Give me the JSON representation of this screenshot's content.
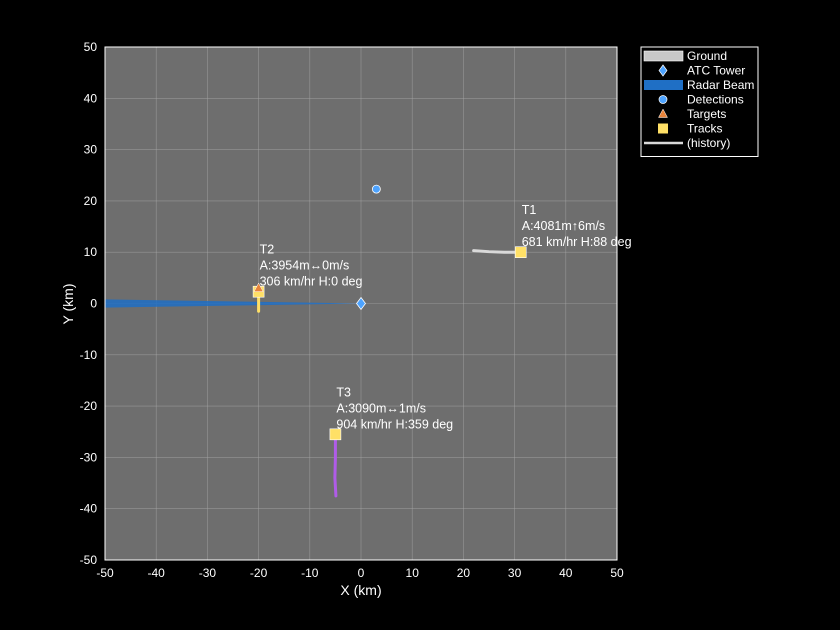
{
  "chart_data": {
    "type": "scatter",
    "xlabel": "X (km)",
    "ylabel": "Y (km)",
    "xlim": [
      -50,
      50
    ],
    "ylim": [
      -50,
      50
    ],
    "xticks": [
      -50,
      -40,
      -30,
      -20,
      -10,
      0,
      10,
      20,
      30,
      40,
      50
    ],
    "yticks": [
      -50,
      -40,
      -30,
      -20,
      -10,
      0,
      10,
      20,
      30,
      40,
      50
    ],
    "grid": true,
    "legend_position": "outside-top-right",
    "colors": {
      "background": "#000000",
      "axes_face": "#6e6e6e",
      "grid": "#a8a8a8",
      "ground": "#c8c8c8",
      "tower": "#4da3ff",
      "beam": "#1f6fc5",
      "detection": "#4da3ff",
      "target": "#e8833a",
      "track": "#ffe066",
      "history": "#d9d9d9"
    },
    "atc_tower": {
      "x": 0,
      "y": 0
    },
    "radar_beam": {
      "from": [
        0,
        0
      ],
      "to": [
        -50,
        0
      ],
      "half_width_at_end": 0.8
    },
    "detections": [
      {
        "x": 3,
        "y": 22.3
      }
    ],
    "targets": [
      {
        "x": -20,
        "y": 3
      }
    ],
    "tracks": [
      {
        "id": "T1",
        "x": 31.2,
        "y": 10,
        "label_lines": [
          "T1",
          "A:4081m↑6m/s",
          "681 km/hr  H:88 deg"
        ],
        "history_color": "#d9d9d9",
        "history": [
          [
            22,
            10.3
          ],
          [
            25,
            10.1
          ],
          [
            28,
            10.0
          ],
          [
            31.2,
            10.0
          ]
        ]
      },
      {
        "id": "T2",
        "x": -20,
        "y": 2.3,
        "label_lines": [
          "T2",
          "A:3954m↔0m/s",
          "306 km/hr  H:0 deg"
        ],
        "history_color": "#ffe066",
        "history": [
          [
            -20,
            -1.5
          ],
          [
            -20,
            0.5
          ],
          [
            -20,
            2.3
          ]
        ]
      },
      {
        "id": "T3",
        "x": -5,
        "y": -25.5,
        "label_lines": [
          "T3",
          "A:3090m↔1m/s",
          "904 km/hr  H:359 deg"
        ],
        "history_color": "#b05ce8",
        "history": [
          [
            -4.9,
            -37.5
          ],
          [
            -5.1,
            -34
          ],
          [
            -5.0,
            -30
          ],
          [
            -5.0,
            -25.5
          ]
        ]
      }
    ]
  },
  "legend": {
    "items": [
      {
        "label": "Ground",
        "symbol": "ground"
      },
      {
        "label": "ATC Tower",
        "symbol": "tower"
      },
      {
        "label": "Radar Beam",
        "symbol": "beam"
      },
      {
        "label": "Detections",
        "symbol": "detection"
      },
      {
        "label": "Targets",
        "symbol": "target"
      },
      {
        "label": "Tracks",
        "symbol": "track"
      },
      {
        "label": "(history)",
        "symbol": "history"
      }
    ]
  }
}
